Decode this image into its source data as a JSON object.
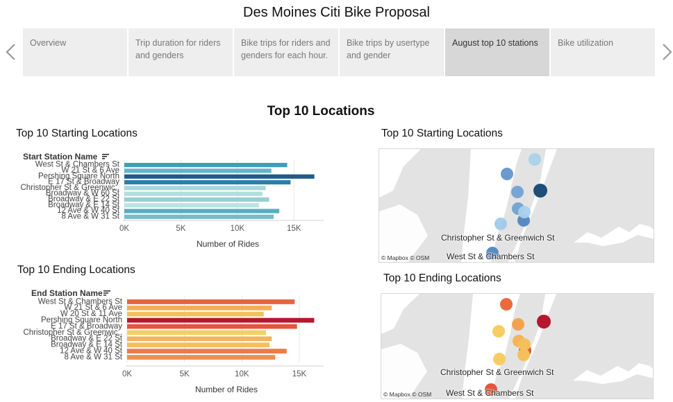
{
  "header": {
    "title": "Des Moines Citi Bike Proposal"
  },
  "nav": {
    "prev_icon": "chevron-left-icon",
    "next_icon": "chevron-right-icon"
  },
  "tabs": [
    {
      "label": "Overview",
      "active": false
    },
    {
      "label": "Trip duration for riders and genders",
      "active": false
    },
    {
      "label": "Bike trips for riders and genders for each hour.",
      "active": false
    },
    {
      "label": "Bike trips by usertype and gender",
      "active": false
    },
    {
      "label": "August top 10 stations",
      "active": true
    },
    {
      "label": "Bike utilization",
      "active": false
    }
  ],
  "main": {
    "heading": "Top 10 Locations"
  },
  "panels": {
    "start_chart_title": "Top 10 Starting Locations",
    "end_chart_title": "Top 10 Ending Locations",
    "start_map_title": "Top 10 Starting Locations",
    "end_map_title": "Top 10 Ending Locations"
  },
  "maps": {
    "attribution": "© Mapbox © OSM",
    "start_labels": [
      "Christopher St & Greenwich St",
      "West St & Chambers St"
    ],
    "end_labels": [
      "Christopher St & Greenwich St",
      "West St & Chambers St"
    ],
    "start_color_scale": [
      "#a6cfe8",
      "#1f4e79"
    ],
    "end_color_scale": [
      "#f4cb5c",
      "#b5172e"
    ],
    "water_color": "#ffffff",
    "land_color": "#e3e3e3"
  },
  "chart_data": [
    {
      "type": "bar",
      "orientation": "horizontal",
      "title": "Top 10 Starting Locations",
      "ylabel": "Start Station Name",
      "xlabel": "Number of Rides",
      "categories": [
        "West St & Chambers St",
        "W 21 St & 6 Ave",
        "Pershing Square North",
        "E 17 St & Broadway",
        "Christopher St & Greenwic..",
        "Broadway & W 60 St",
        "Broadway & E 22 St",
        "Broadway & E 14 St",
        "12 Ave & W 40 St",
        "8 Ave & W 31 St"
      ],
      "values": [
        14400,
        13000,
        16800,
        14700,
        12500,
        12200,
        12800,
        11900,
        13700,
        13200
      ],
      "xticks": [
        "0K",
        "5K",
        "10K",
        "15K"
      ],
      "xlim": [
        0,
        17500
      ],
      "colors": [
        "#3e9fb7",
        "#63b5c6",
        "#1f5a8a",
        "#2e7fa5",
        "#a7d6dc",
        "#b4dcdf",
        "#96cfd6",
        "#bfe2e3",
        "#55adc3",
        "#72bccb"
      ]
    },
    {
      "type": "bar",
      "orientation": "horizontal",
      "title": "Top 10 Ending Locations",
      "ylabel": "End Station Name",
      "xlabel": "Number of Rides",
      "categories": [
        "West St & Chambers St",
        "W 21 St & 6 Ave",
        "W 20 St & 11 Ave",
        "Pershing Square North",
        "E 17 St & Broadway",
        "Christopher St & Greenwic..",
        "Broadway & E 22 St",
        "Broadway & E 14 St",
        "12 Ave & W 40 St",
        "8 Ave & W 31 St"
      ],
      "values": [
        14600,
        12600,
        11900,
        16300,
        14800,
        12100,
        12600,
        12400,
        13900,
        12900
      ],
      "xticks": [
        "0K",
        "5K",
        "10K",
        "15K"
      ],
      "xlim": [
        0,
        17000
      ],
      "colors": [
        "#e0663e",
        "#f5ad55",
        "#f5c05b",
        "#b5172e",
        "#e0573a",
        "#f7cd63",
        "#f5b459",
        "#f5bd5c",
        "#ea7c48",
        "#f08f4c"
      ]
    }
  ]
}
